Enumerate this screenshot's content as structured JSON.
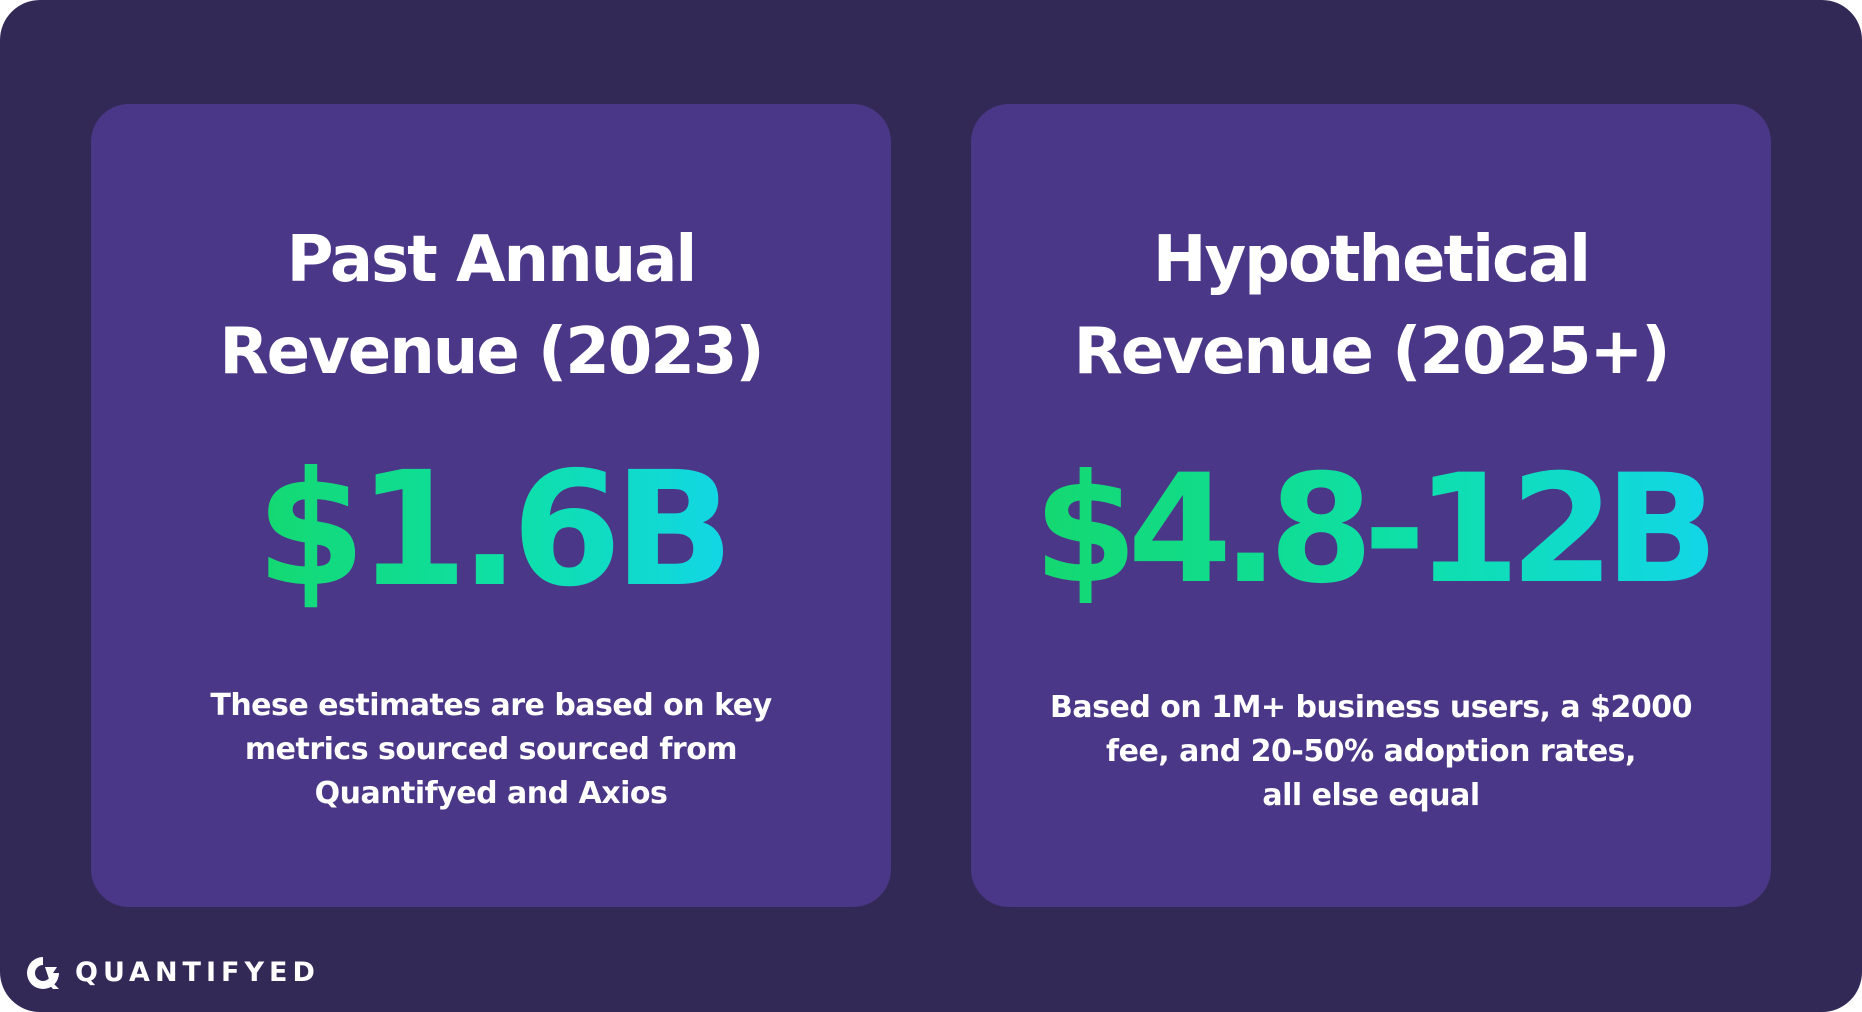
{
  "cards": [
    {
      "title_lines": [
        "Past Annual",
        "Revenue (2023)"
      ],
      "value": "$1.6B",
      "note_lines": [
        "These estimates are based on key",
        "metrics sourced sourced from",
        "Quantifyed and Axios"
      ]
    },
    {
      "title_lines": [
        "Hypothetical",
        "Revenue (2025+)"
      ],
      "value": "$4.8-12B",
      "note_lines": [
        "Based on 1M+ business users, a $2000",
        "fee, and 20-50% adoption rates,",
        "all else equal"
      ]
    }
  ],
  "brand": {
    "name": "QUANTIFYED",
    "logo_icon": "quantifyed-logo-icon"
  },
  "colors": {
    "background": "#332957",
    "card": "#4b3787",
    "value_gradient_start": "#14d86f",
    "value_gradient_end": "#12d6e6",
    "text": "#ffffff"
  }
}
